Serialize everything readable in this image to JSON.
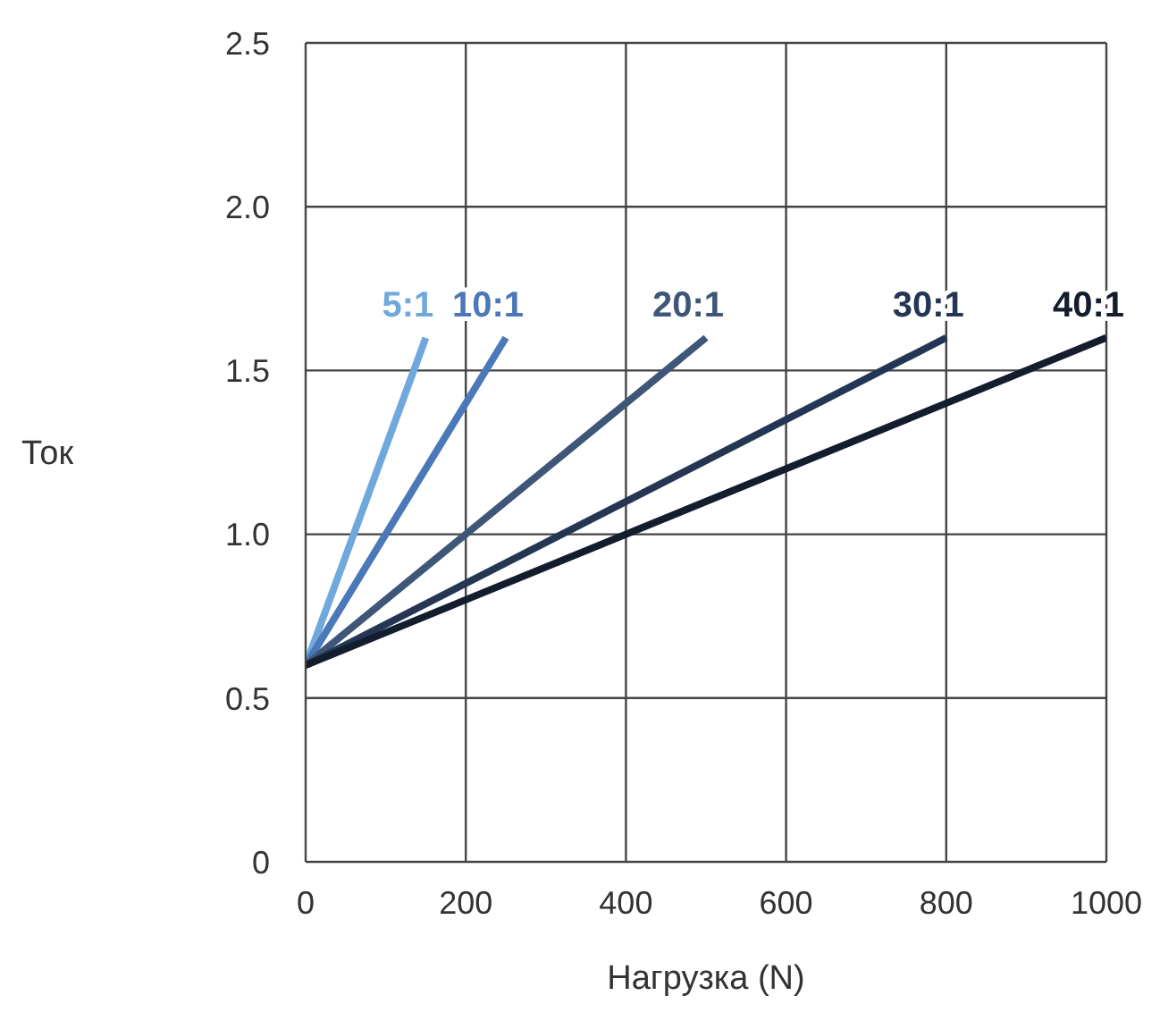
{
  "chart_data": {
    "type": "line",
    "xlabel": "Нагрузка  (N)",
    "ylabel": "Ток",
    "xlim": [
      0,
      1000
    ],
    "xticks": [
      0,
      200,
      400,
      600,
      800,
      1000
    ],
    "ylim": [
      0,
      2.5
    ],
    "yticks": [
      0,
      0.5,
      {
        "value": 1,
        "label": "1.0"
      },
      1.5,
      {
        "value": 2,
        "label": "2.0"
      },
      2.5
    ],
    "grid": true,
    "legend": false,
    "marker": "none",
    "line_style": "solid",
    "series": [
      {
        "name": "5:1",
        "color": "#6fa8dc",
        "x": [
          0,
          150
        ],
        "values": [
          0.6,
          1.6
        ]
      },
      {
        "name": "10:1",
        "color": "#4a78b8",
        "x": [
          0,
          250
        ],
        "values": [
          0.6,
          1.6
        ]
      },
      {
        "name": "20:1",
        "color": "#3e5678",
        "x": [
          0,
          500
        ],
        "values": [
          0.6,
          1.6
        ]
      },
      {
        "name": "30:1",
        "color": "#253655",
        "x": [
          0,
          800
        ],
        "values": [
          0.6,
          1.6
        ]
      },
      {
        "name": "40:1",
        "color": "#131d2e",
        "x": [
          0,
          1000
        ],
        "values": [
          0.6,
          1.6
        ]
      }
    ]
  }
}
